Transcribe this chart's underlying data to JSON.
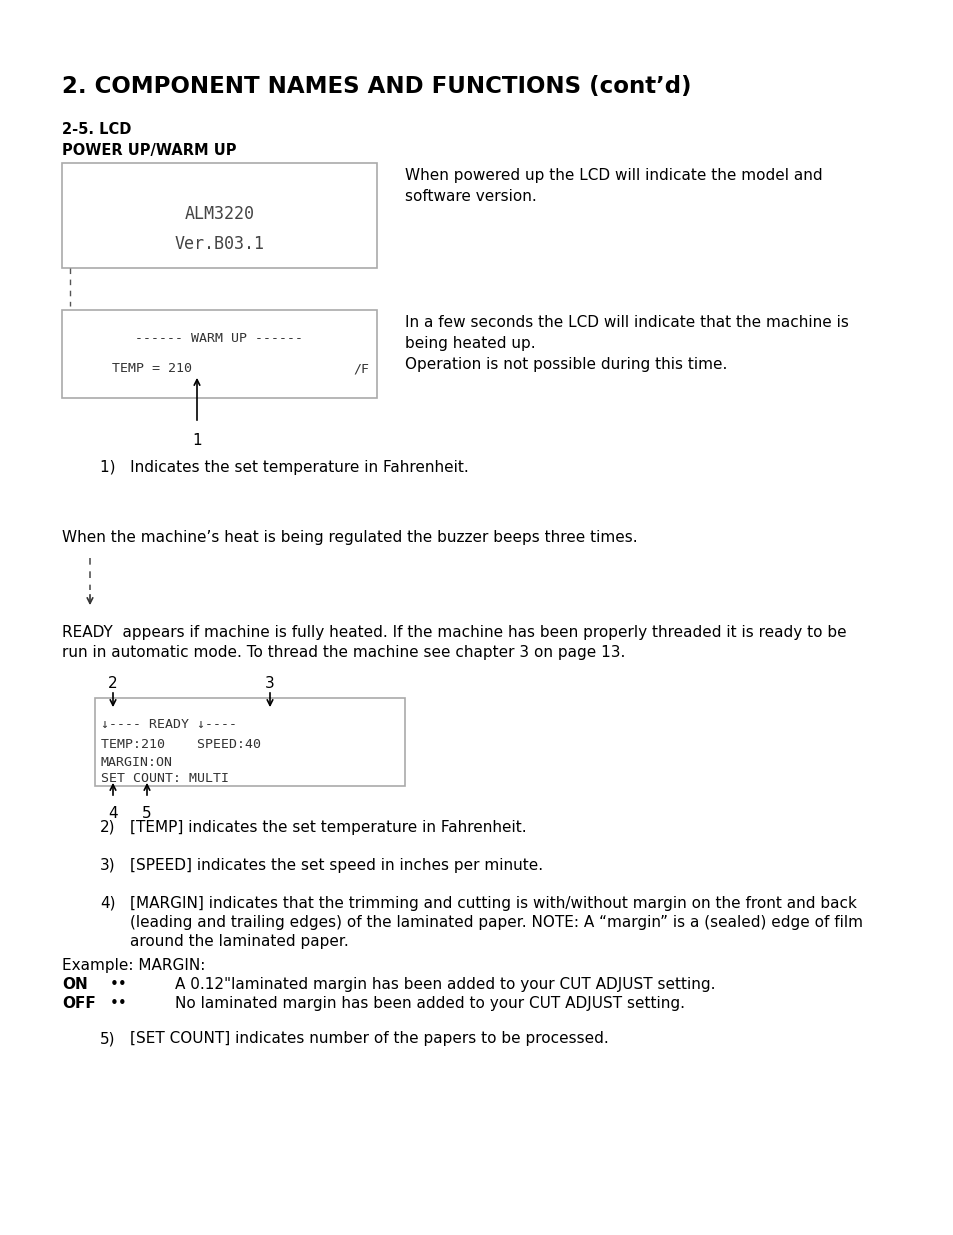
{
  "title": "2. COMPONENT NAMES AND FUNCTIONS (cont’d)",
  "section": "2-5. LCD",
  "subsection": "POWER UP/WARM UP",
  "bg_color": "#ffffff",
  "text_color": "#000000",
  "lcd1_desc": "When powered up the LCD will indicate the model and\nsoftware version.",
  "lcd2_desc": "In a few seconds the LCD will indicate that the machine is\nbeing heated up.\nOperation is not possible during this time.",
  "item1": "Indicates the set temperature in Fahrenheit.",
  "buzzer_text": "When the machine’s heat is being regulated the buzzer beeps three times.",
  "ready_line1": "READY  appears if machine is fully heated. If the machine has been properly threaded it is ready to be",
  "ready_line2": "run in automatic mode. To thread the machine see chapter 3 on page 13.",
  "item2": "[TEMP] indicates the set temperature in Fahrenheit.",
  "item3": "[SPEED] indicates the set speed in inches per minute.",
  "item4_line1": "[MARGIN] indicates that the trimming and cutting is with/without margin on the front and back",
  "item4_line2": "(leading and trailing edges) of the laminated paper. NOTE: A “margin” is a (sealed) edge of film",
  "item4_line3": "around the laminated paper.",
  "item4_ex": "Example: MARGIN:",
  "item5": "[SET COUNT] indicates number of the papers to be processed."
}
